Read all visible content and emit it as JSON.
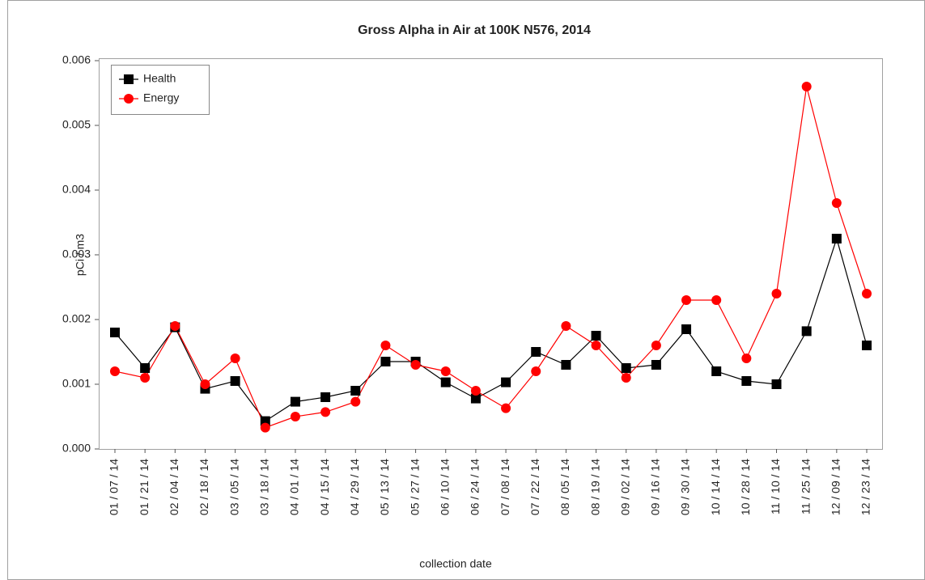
{
  "chart_data": {
    "type": "line",
    "title": "Gross Alpha in Air at 100K N576, 2014",
    "x_label": "collection date",
    "y_label": "pCi / m3",
    "categories": [
      "01 / 07 / 14",
      "01 / 21 / 14",
      "02 / 04 / 14",
      "02 / 18 / 14",
      "03 / 05 / 14",
      "03 / 18 / 14",
      "04 / 01 / 14",
      "04 / 15 / 14",
      "04 / 29 / 14",
      "05 / 13 / 14",
      "05 / 27 / 14",
      "06 / 10 / 14",
      "06 / 24 / 14",
      "07 / 08 / 14",
      "07 / 22 / 14",
      "08 / 05 / 14",
      "08 / 19 / 14",
      "09 / 02 / 14",
      "09 / 16 / 14",
      "09 / 30 / 14",
      "10 / 14 / 14",
      "10 / 28 / 14",
      "11 / 10 / 14",
      "11 / 25 / 14",
      "12 / 09 / 14",
      "12 / 23 / 14"
    ],
    "series": [
      {
        "name": "Health",
        "color": "#000000",
        "marker": "square",
        "values": [
          0.0018,
          0.00125,
          0.00188,
          0.00093,
          0.00105,
          0.00043,
          0.00073,
          0.0008,
          0.0009,
          0.00135,
          0.00135,
          0.00103,
          0.00078,
          0.00103,
          0.0015,
          0.0013,
          0.00175,
          0.00125,
          0.0013,
          0.00185,
          0.0012,
          0.00105,
          0.001,
          0.00182,
          0.00325,
          0.0016
        ]
      },
      {
        "name": "Energy",
        "color": "#ff0000",
        "marker": "circle",
        "values": [
          0.0012,
          0.0011,
          0.0019,
          0.001,
          0.0014,
          0.00033,
          0.0005,
          0.00057,
          0.00073,
          0.0016,
          0.0013,
          0.0012,
          0.0009,
          0.00063,
          0.0012,
          0.0019,
          0.0016,
          0.0011,
          0.0016,
          0.0023,
          0.0023,
          0.0014,
          0.0024,
          0.0056,
          0.0038,
          0.0024
        ]
      }
    ],
    "ylim": [
      0,
      0.006
    ],
    "yticks": [
      {
        "value": 0,
        "label": "0.000"
      },
      {
        "value": 0.001,
        "label": "0.001"
      },
      {
        "value": 0.002,
        "label": "0.002"
      },
      {
        "value": 0.003,
        "label": "0.003"
      },
      {
        "value": 0.004,
        "label": "0.004"
      },
      {
        "value": 0.005,
        "label": "0.005"
      },
      {
        "value": 0.006,
        "label": "0.006"
      }
    ],
    "grid": false,
    "legend": "upper left"
  }
}
